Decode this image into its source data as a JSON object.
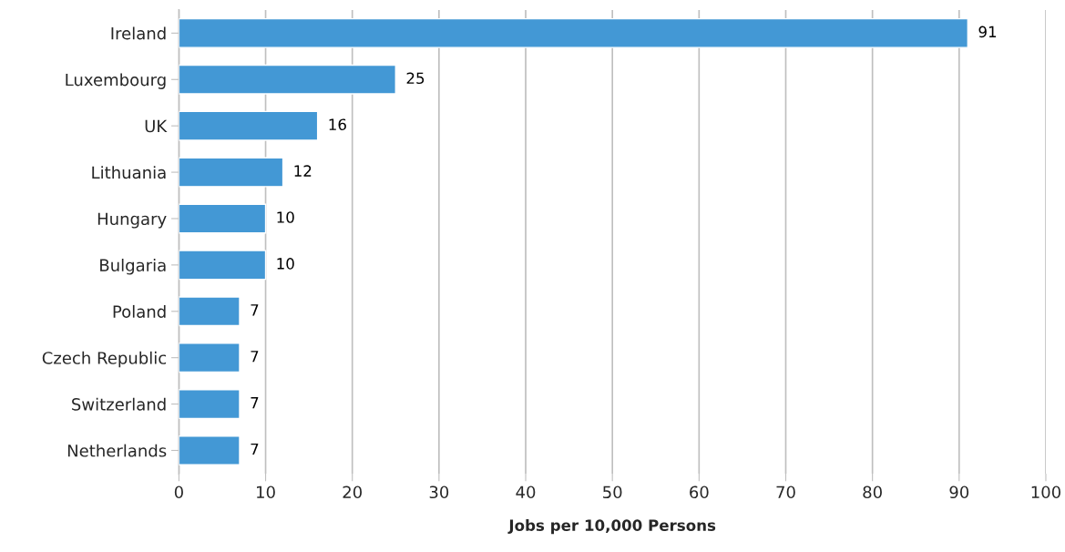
{
  "chart_data": {
    "type": "bar",
    "orientation": "horizontal",
    "xlabel": "Jobs per 10,000 Persons",
    "categories": [
      "Ireland",
      "Luxembourg",
      "UK",
      "Lithuania",
      "Hungary",
      "Bulgaria",
      "Poland",
      "Czech Republic",
      "Switzerland",
      "Netherlands"
    ],
    "values": [
      91,
      25,
      16,
      12,
      10,
      10,
      7,
      7,
      7,
      7
    ],
    "color": "#4398d5",
    "data_labels": true,
    "xlim": [
      0,
      100
    ],
    "xticks": [
      0,
      10,
      20,
      30,
      40,
      50,
      60,
      70,
      80,
      90,
      100
    ],
    "grid": "x",
    "legend": false
  }
}
